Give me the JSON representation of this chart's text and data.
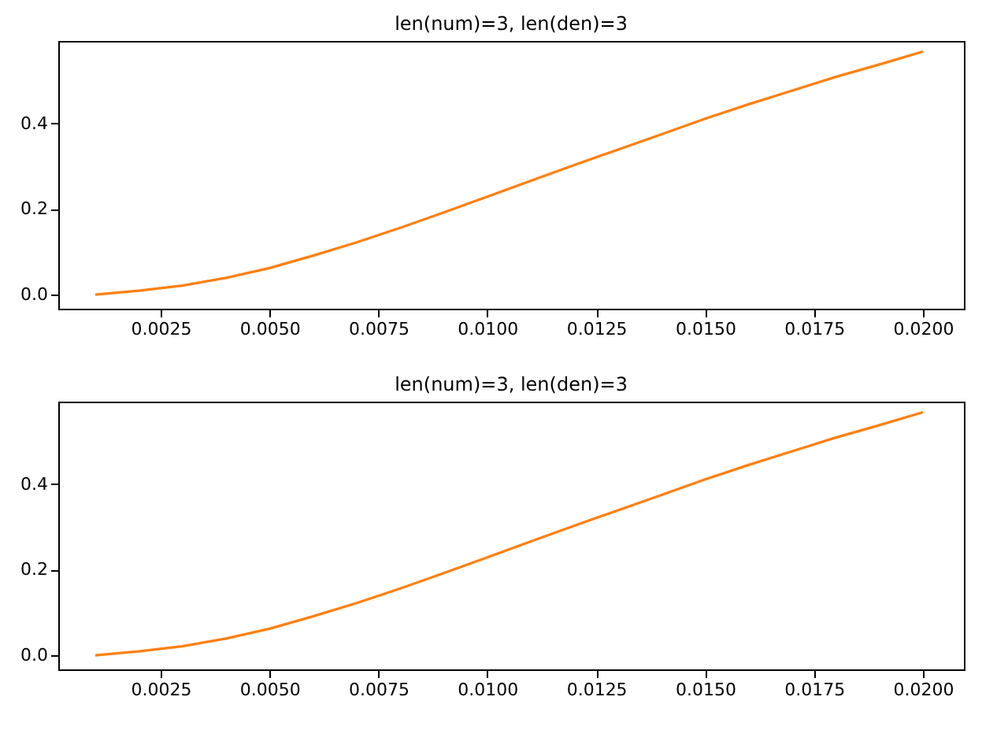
{
  "chart_data": [
    {
      "type": "line",
      "title": "len(num)=3, len(den)=3",
      "x": [
        0.001,
        0.002,
        0.003,
        0.004,
        0.005,
        0.006,
        0.007,
        0.008,
        0.009,
        0.01,
        0.011,
        0.012,
        0.013,
        0.014,
        0.015,
        0.016,
        0.017,
        0.018,
        0.019,
        0.02
      ],
      "series": [
        {
          "color": "#ff7f0e",
          "values": [
            0.0,
            0.009,
            0.021,
            0.039,
            0.062,
            0.091,
            0.122,
            0.156,
            0.192,
            0.229,
            0.266,
            0.303,
            0.339,
            0.375,
            0.411,
            0.445,
            0.477,
            0.509,
            0.538,
            0.568
          ]
        }
      ],
      "xlim": [
        0.00015,
        0.02094
      ],
      "ylim": [
        -0.033,
        0.593
      ],
      "xticks": [
        {
          "value": 0.0025,
          "label": "0.0025"
        },
        {
          "value": 0.005,
          "label": "0.0050"
        },
        {
          "value": 0.0075,
          "label": "0.0075"
        },
        {
          "value": 0.01,
          "label": "0.0100"
        },
        {
          "value": 0.0125,
          "label": "0.0125"
        },
        {
          "value": 0.015,
          "label": "0.0150"
        },
        {
          "value": 0.0175,
          "label": "0.0175"
        },
        {
          "value": 0.02,
          "label": "0.0200"
        }
      ],
      "yticks": [
        {
          "value": 0,
          "label": "0.0"
        },
        {
          "value": 0.2,
          "label": "0.2"
        },
        {
          "value": 0.4,
          "label": "0.4"
        }
      ],
      "grid": false,
      "marker": "none",
      "line_style": "solid"
    },
    {
      "type": "line",
      "title": "len(num)=3, len(den)=3",
      "x": [
        0.001,
        0.002,
        0.003,
        0.004,
        0.005,
        0.006,
        0.007,
        0.008,
        0.009,
        0.01,
        0.011,
        0.012,
        0.013,
        0.014,
        0.015,
        0.016,
        0.017,
        0.018,
        0.019,
        0.02
      ],
      "series": [
        {
          "color": "#ff7f0e",
          "values": [
            0.0,
            0.009,
            0.021,
            0.039,
            0.062,
            0.091,
            0.122,
            0.156,
            0.192,
            0.229,
            0.266,
            0.303,
            0.339,
            0.375,
            0.411,
            0.445,
            0.477,
            0.509,
            0.538,
            0.568
          ]
        }
      ],
      "xlim": [
        0.00015,
        0.02094
      ],
      "ylim": [
        -0.033,
        0.593
      ],
      "xticks": [
        {
          "value": 0.0025,
          "label": "0.0025"
        },
        {
          "value": 0.005,
          "label": "0.0050"
        },
        {
          "value": 0.0075,
          "label": "0.0075"
        },
        {
          "value": 0.01,
          "label": "0.0100"
        },
        {
          "value": 0.0125,
          "label": "0.0125"
        },
        {
          "value": 0.015,
          "label": "0.0150"
        },
        {
          "value": 0.0175,
          "label": "0.0175"
        },
        {
          "value": 0.02,
          "label": "0.0200"
        }
      ],
      "yticks": [
        {
          "value": 0,
          "label": "0.0"
        },
        {
          "value": 0.2,
          "label": "0.2"
        },
        {
          "value": 0.4,
          "label": "0.4"
        }
      ],
      "grid": false,
      "marker": "none",
      "line_style": "solid"
    }
  ]
}
